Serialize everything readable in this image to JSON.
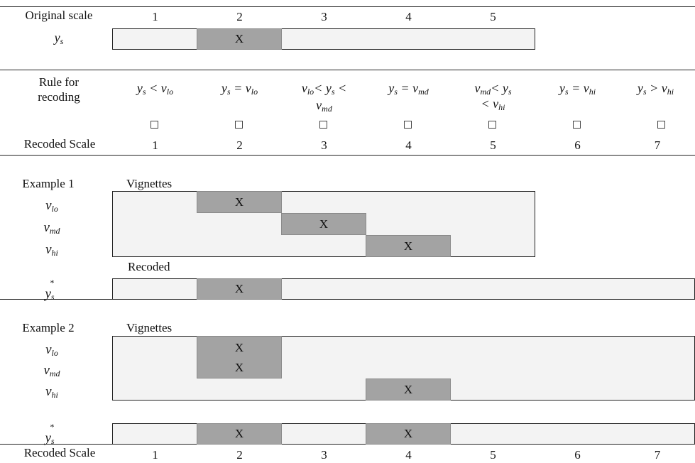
{
  "header": {
    "original_scale_label": "Original scale",
    "original_scale_values": [
      "1",
      "2",
      "3",
      "4",
      "5"
    ],
    "ys_label": {
      "base": "y",
      "sub": "s"
    }
  },
  "rules": {
    "label_line1": "Rule for",
    "label_line2": "recoding",
    "r1": {
      "a": "y",
      "as": "s",
      "op": " < ",
      "b": "v",
      "bs": "lo"
    },
    "r2": {
      "a": "y",
      "as": "s",
      "op": " = ",
      "b": "v",
      "bs": "lo"
    },
    "r3": {
      "a": "v",
      "as": "lo",
      "op1": "< ",
      "b": "y",
      "bs": "s",
      "op2": " <",
      "c": "v",
      "cs": "md"
    },
    "r4": {
      "a": "y",
      "as": "s",
      "op": " = ",
      "b": "v",
      "bs": "md"
    },
    "r5": {
      "a": "v",
      "as": "md",
      "op1": "< ",
      "b": "y",
      "bs": "s",
      "op2": "< ",
      "c": "v",
      "cs": "hi"
    },
    "r6": {
      "a": "y",
      "as": "s",
      "op": " = ",
      "b": "v",
      "bs": "hi"
    },
    "r7": {
      "a": "y",
      "as": "s",
      "op": " > ",
      "b": "v",
      "bs": "hi"
    },
    "checkbox_glyph": "□"
  },
  "recoded_scale": {
    "label": "Recoded Scale",
    "values": [
      "1",
      "2",
      "3",
      "4",
      "5",
      "6",
      "7"
    ]
  },
  "mark": "X",
  "example1": {
    "label": "Example 1",
    "vignettes_label": "Vignettes",
    "recoded_label": "Recoded",
    "vlo": {
      "base": "v",
      "sub": "lo"
    },
    "vmd": {
      "base": "v",
      "sub": "md"
    },
    "vhi": {
      "base": "v",
      "sub": "hi"
    },
    "ystar": {
      "base": "y",
      "sup": "*",
      "sub": "s"
    }
  },
  "example2": {
    "label": "Example 2",
    "vignettes_label": "Vignettes",
    "vlo": {
      "base": "v",
      "sub": "lo"
    },
    "vmd": {
      "base": "v",
      "sub": "md"
    },
    "vhi": {
      "base": "v",
      "sub": "hi"
    },
    "ystar": {
      "base": "y",
      "sup": "*",
      "sub": "s"
    }
  }
}
